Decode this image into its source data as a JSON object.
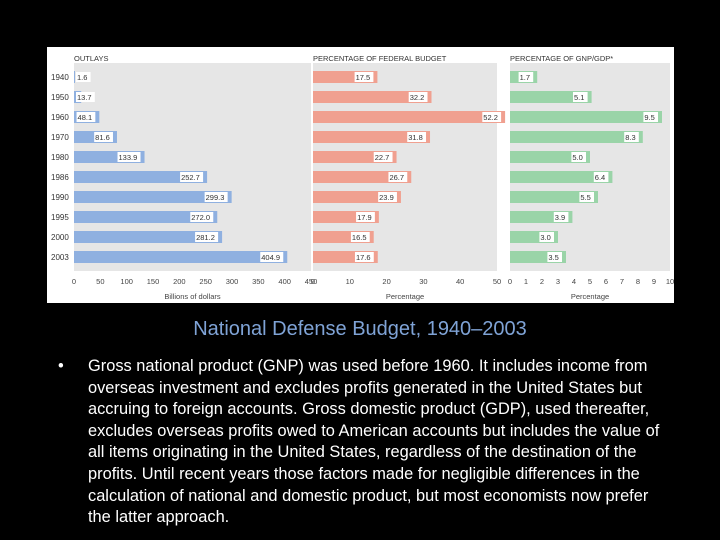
{
  "caption": "National Defense Budget, 1940–2003",
  "note": {
    "bullet": "•",
    "text": "Gross national product (GNP) was used before 1960. It includes income from overseas investment and excludes profits generated in the United States but accruing to foreign accounts. Gross domestic product (GDP), used thereafter, excludes overseas profits owed to American accounts but includes the value of all items originating in the United States, regardless of the destination of the profits. Until recent years those factors made for negligible differences in the calculation of national and domestic product, but most economists now prefer the latter approach."
  },
  "colors": {
    "outlays": "#8fb0e0",
    "federal": "#f0a090",
    "gnp": "#9ad4a8",
    "panel": "#e6e6e6"
  },
  "chart_data": [
    {
      "type": "bar",
      "orientation": "horizontal",
      "title": "OUTLAYS",
      "xlabel": "Billions of dollars",
      "categories": [
        "1940",
        "1950",
        "1960",
        "1970",
        "1980",
        "1986",
        "1990",
        "1995",
        "2000",
        "2003"
      ],
      "values": [
        1.6,
        13.7,
        48.1,
        81.6,
        133.9,
        252.7,
        299.3,
        272.0,
        281.2,
        404.9
      ],
      "value_labels": [
        "1.6",
        "13.7",
        "48.1",
        "81.6",
        "133.9",
        "252.7",
        "299.3",
        "272.0",
        "281.2",
        "404.9"
      ],
      "xlim": [
        0,
        450
      ],
      "xticks": [
        0,
        50,
        100,
        150,
        200,
        250,
        300,
        350,
        400,
        450
      ]
    },
    {
      "type": "bar",
      "orientation": "horizontal",
      "title": "PERCENTAGE OF FEDERAL BUDGET",
      "xlabel": "Percentage",
      "categories": [
        "1940",
        "1950",
        "1960",
        "1970",
        "1980",
        "1986",
        "1990",
        "1995",
        "2000",
        "2003"
      ],
      "values": [
        17.5,
        32.2,
        52.2,
        31.8,
        22.7,
        26.7,
        23.9,
        17.9,
        16.5,
        17.6
      ],
      "value_labels": [
        "17.5",
        "32.2",
        "52.2",
        "31.8",
        "22.7",
        "26.7",
        "23.9",
        "17.9",
        "16.5",
        "17.6"
      ],
      "xlim": [
        0,
        50
      ],
      "xticks": [
        0,
        10,
        20,
        30,
        40,
        50
      ]
    },
    {
      "type": "bar",
      "orientation": "horizontal",
      "title": "PERCENTAGE OF GNP/GDP*",
      "xlabel": "Percentage",
      "categories": [
        "1940",
        "1950",
        "1960",
        "1970",
        "1980",
        "1986",
        "1990",
        "1995",
        "2000",
        "2003"
      ],
      "values": [
        1.7,
        5.1,
        9.5,
        8.3,
        5.0,
        6.4,
        5.5,
        3.9,
        3.0,
        3.5
      ],
      "value_labels": [
        "1.7",
        "5.1",
        "9.5",
        "8.3",
        "5.0",
        "6.4",
        "5.5",
        "3.9",
        "3.0",
        "3.5"
      ],
      "xlim": [
        0,
        10
      ],
      "xticks": [
        0,
        1,
        2,
        3,
        4,
        5,
        6,
        7,
        8,
        9,
        10
      ]
    }
  ]
}
